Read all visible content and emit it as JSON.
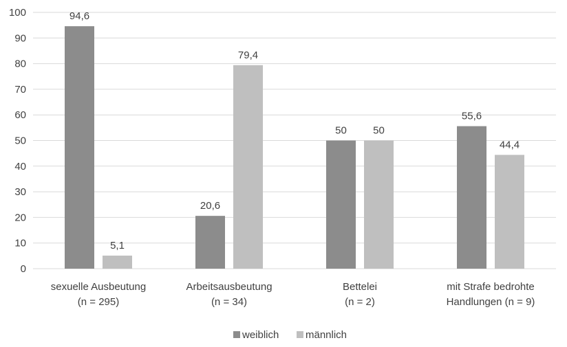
{
  "chart_data": {
    "type": "bar",
    "title": "",
    "xlabel": "",
    "ylabel": "",
    "ylim": [
      0,
      100
    ],
    "yticks": [
      0,
      10,
      20,
      30,
      40,
      50,
      60,
      70,
      80,
      90,
      100
    ],
    "grid": true,
    "legend_position": "bottom",
    "categories": [
      [
        "sexuelle Ausbeutung",
        "(n = 295)"
      ],
      [
        "Arbeitsausbeutung",
        "(n = 34)"
      ],
      [
        "Bettelei",
        "(n = 2)"
      ],
      [
        "mit Strafe bedrohte",
        "Handlungen (n = 9)"
      ]
    ],
    "series": [
      {
        "name": "weiblich",
        "color": "#8c8c8c",
        "values": [
          94.6,
          20.6,
          50,
          55.6
        ],
        "labels": [
          "94,6",
          "20,6",
          "50",
          "55,6"
        ]
      },
      {
        "name": "männlich",
        "color": "#bfbfbf",
        "values": [
          5.1,
          79.4,
          50,
          44.4
        ],
        "labels": [
          "5,1",
          "79,4",
          "50",
          "44,4"
        ]
      }
    ],
    "colors": {
      "grid": "#d9d9d9",
      "axis": "#d9d9d9",
      "text": "#404040"
    }
  }
}
